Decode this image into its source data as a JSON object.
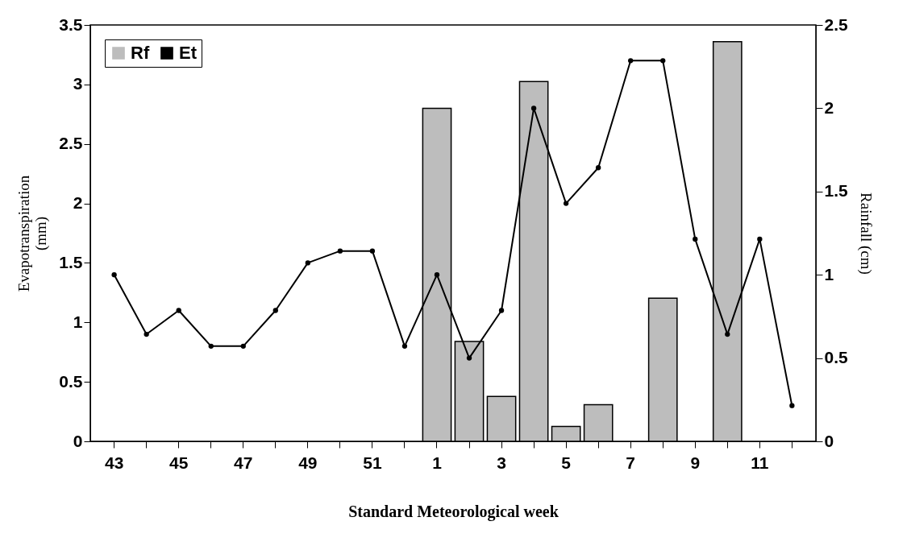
{
  "chart_data": {
    "type": "bar",
    "xlabel": "Standard Meteorological week",
    "ylabel": "Evapotranspiration\n(mm)",
    "y2label": "Rainfall (cm)",
    "categories": [
      "43",
      null,
      "45",
      null,
      "47",
      null,
      "49",
      null,
      "51",
      null,
      "1",
      null,
      "3",
      null,
      "5",
      null,
      "7",
      null,
      "9",
      null,
      "11",
      null
    ],
    "series": [
      {
        "name": "Rf",
        "axis": "y2",
        "color": "#bdbdbd",
        "values": [
          null,
          null,
          null,
          null,
          null,
          null,
          null,
          null,
          null,
          null,
          2.0,
          0.6,
          0.27,
          2.16,
          0.09,
          0.22,
          null,
          0.86,
          null,
          2.4,
          null,
          null
        ]
      },
      {
        "name": "Et",
        "type": "line",
        "color": "#000000",
        "values": [
          1.4,
          0.9,
          1.1,
          0.8,
          0.8,
          1.1,
          1.5,
          1.6,
          1.6,
          0.8,
          1.4,
          0.7,
          1.1,
          2.8,
          2.0,
          2.3,
          3.2,
          3.2,
          1.7,
          0.9,
          1.7,
          0.3
        ]
      }
    ],
    "ylim": [
      0,
      3.5
    ],
    "yticks": [
      0,
      0.5,
      1,
      1.5,
      2,
      2.5,
      3,
      3.5
    ],
    "y2lim": [
      0,
      2.5
    ],
    "y2ticks": [
      0,
      0.5,
      1,
      1.5,
      2,
      2.5
    ],
    "legend": "top left",
    "marker": "circle",
    "line_style": "solid"
  }
}
